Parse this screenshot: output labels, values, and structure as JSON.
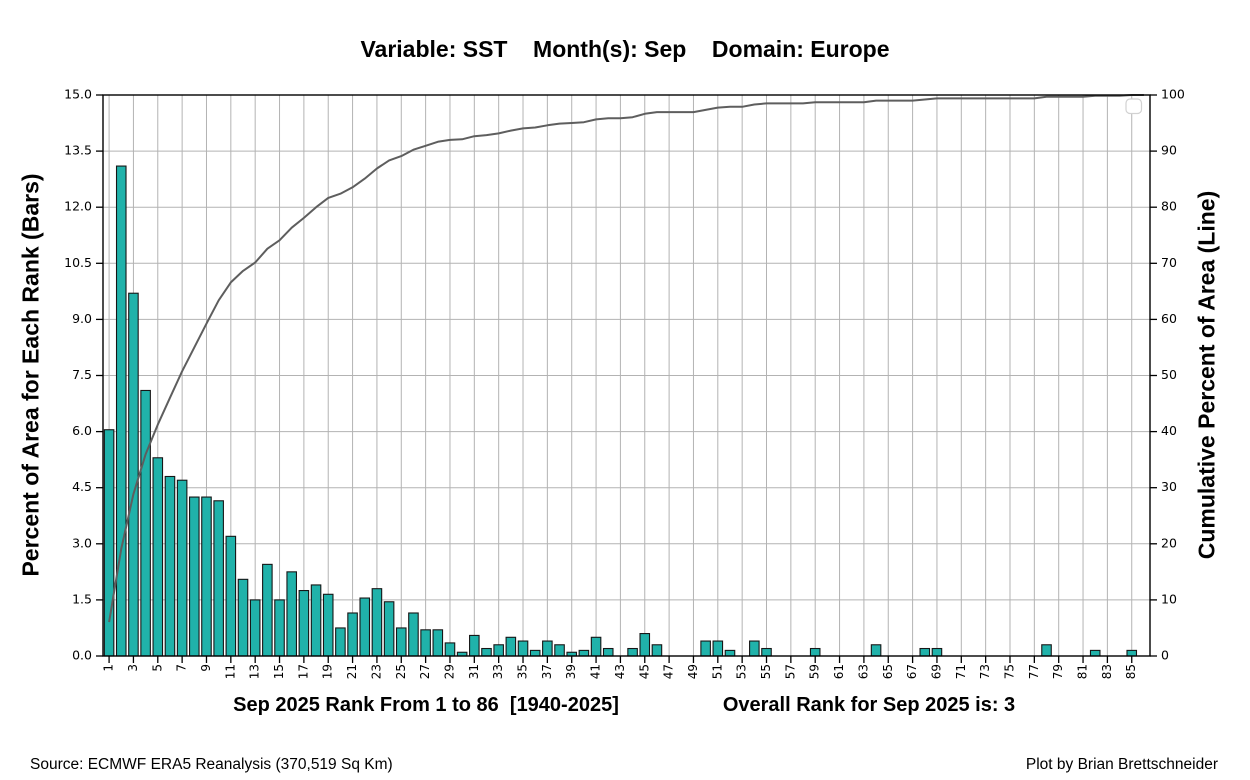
{
  "title": "Variable: SST    Month(s): Sep    Domain: Europe",
  "left_axis": {
    "label": "Percent of Area for Each Rank (Bars)",
    "tick_labels": [
      "0.0",
      "1.5",
      "3.0",
      "4.5",
      "6.0",
      "7.5",
      "9.0",
      "10.5",
      "12.0",
      "13.5",
      "15.0"
    ],
    "min": 0,
    "max": 15
  },
  "right_axis": {
    "label": "Cumulative Percent of Area (Line)",
    "tick_labels": [
      "0",
      "10",
      "20",
      "30",
      "40",
      "50",
      "60",
      "70",
      "80",
      "90",
      "100"
    ],
    "min": 0,
    "max": 100
  },
  "x_axis": {
    "tick_labels": [
      1,
      3,
      5,
      7,
      9,
      11,
      13,
      15,
      17,
      19,
      21,
      23,
      25,
      27,
      29,
      31,
      33,
      35,
      37,
      39,
      41,
      43,
      45,
      47,
      49,
      51,
      53,
      55,
      57,
      59,
      61,
      63,
      65,
      67,
      69,
      71,
      73,
      75,
      77,
      79,
      81,
      83,
      85
    ],
    "title_left": "Sep 2025 Rank From 1 to 86  [1940-2025]",
    "title_right": "Overall Rank for Sep 2025 is: 3"
  },
  "footer": {
    "source": "Source: ECMWF ERA5 Reanalysis (370,519 Sq Km)",
    "credit": "Plot by Brian Brettschneider"
  },
  "colors": {
    "bar_fill": "#20b2aa",
    "bar_edge": "#161616",
    "cumulative_line": "#5e5e5e",
    "grid": "#b3b3b3",
    "spine": "#000000",
    "legend_border": "#d2d2d2"
  },
  "chart_data": {
    "type": "bar+line",
    "title": "Variable: SST    Month(s): Sep    Domain: Europe",
    "xlabel": "Sep 2025 Rank From 1 to 86  [1940-2025]",
    "ylabel_left": "Percent of Area for Each Rank (Bars)",
    "ylabel_right": "Cumulative Percent of Area (Line)",
    "overall_rank_note": "Overall Rank for Sep 2025 is: 3",
    "rank_start": 1,
    "rank_end": 86,
    "ylim_left": [
      0,
      15
    ],
    "ylim_right": [
      0,
      100
    ],
    "grid": true,
    "series": [
      {
        "name": "Percent of Area for Each Rank",
        "type": "bar",
        "axis": "left",
        "values": [
          6.05,
          13.1,
          9.7,
          7.1,
          5.3,
          4.8,
          4.7,
          4.25,
          4.25,
          4.15,
          3.2,
          2.05,
          1.5,
          2.45,
          1.5,
          2.25,
          1.75,
          1.9,
          1.65,
          0.75,
          1.15,
          1.55,
          1.8,
          1.45,
          0.75,
          1.15,
          0.7,
          0.7,
          0.35,
          0.1,
          0.55,
          0.2,
          0.3,
          0.5,
          0.4,
          0.15,
          0.4,
          0.3,
          0.1,
          0.15,
          0.5,
          0.2,
          0,
          0.2,
          0.6,
          0.3,
          0,
          0,
          0,
          0.4,
          0.4,
          0.15,
          0,
          0.4,
          0.2,
          0,
          0,
          0,
          0.2,
          0,
          0,
          0,
          0,
          0.3,
          0,
          0,
          0,
          0.2,
          0.2,
          0,
          0,
          0,
          0,
          0,
          0,
          0,
          0,
          0.3,
          0,
          0,
          0,
          0.15,
          0,
          0,
          0.15,
          0
        ]
      },
      {
        "name": "Cumulative Percent of Area",
        "type": "line",
        "axis": "right",
        "values": [
          6.05,
          19.15,
          28.85,
          35.95,
          41.25,
          46.05,
          50.75,
          55.0,
          59.25,
          63.4,
          66.6,
          68.65,
          70.15,
          72.6,
          74.1,
          76.35,
          78.1,
          80.0,
          81.65,
          82.4,
          83.55,
          85.1,
          86.9,
          88.35,
          89.1,
          90.25,
          90.95,
          91.65,
          92.0,
          92.1,
          92.65,
          92.85,
          93.15,
          93.65,
          94.05,
          94.2,
          94.6,
          94.9,
          95.0,
          95.15,
          95.65,
          95.85,
          95.85,
          96.05,
          96.65,
          96.95,
          96.95,
          96.95,
          96.95,
          97.35,
          97.75,
          97.9,
          97.9,
          98.3,
          98.5,
          98.5,
          98.5,
          98.5,
          98.7,
          98.7,
          98.7,
          98.7,
          98.7,
          99.0,
          99.0,
          99.0,
          99.0,
          99.2,
          99.4,
          99.4,
          99.4,
          99.4,
          99.4,
          99.4,
          99.4,
          99.4,
          99.4,
          99.7,
          99.7,
          99.7,
          99.7,
          99.85,
          99.85,
          99.85,
          100.0,
          100.0
        ]
      }
    ]
  }
}
